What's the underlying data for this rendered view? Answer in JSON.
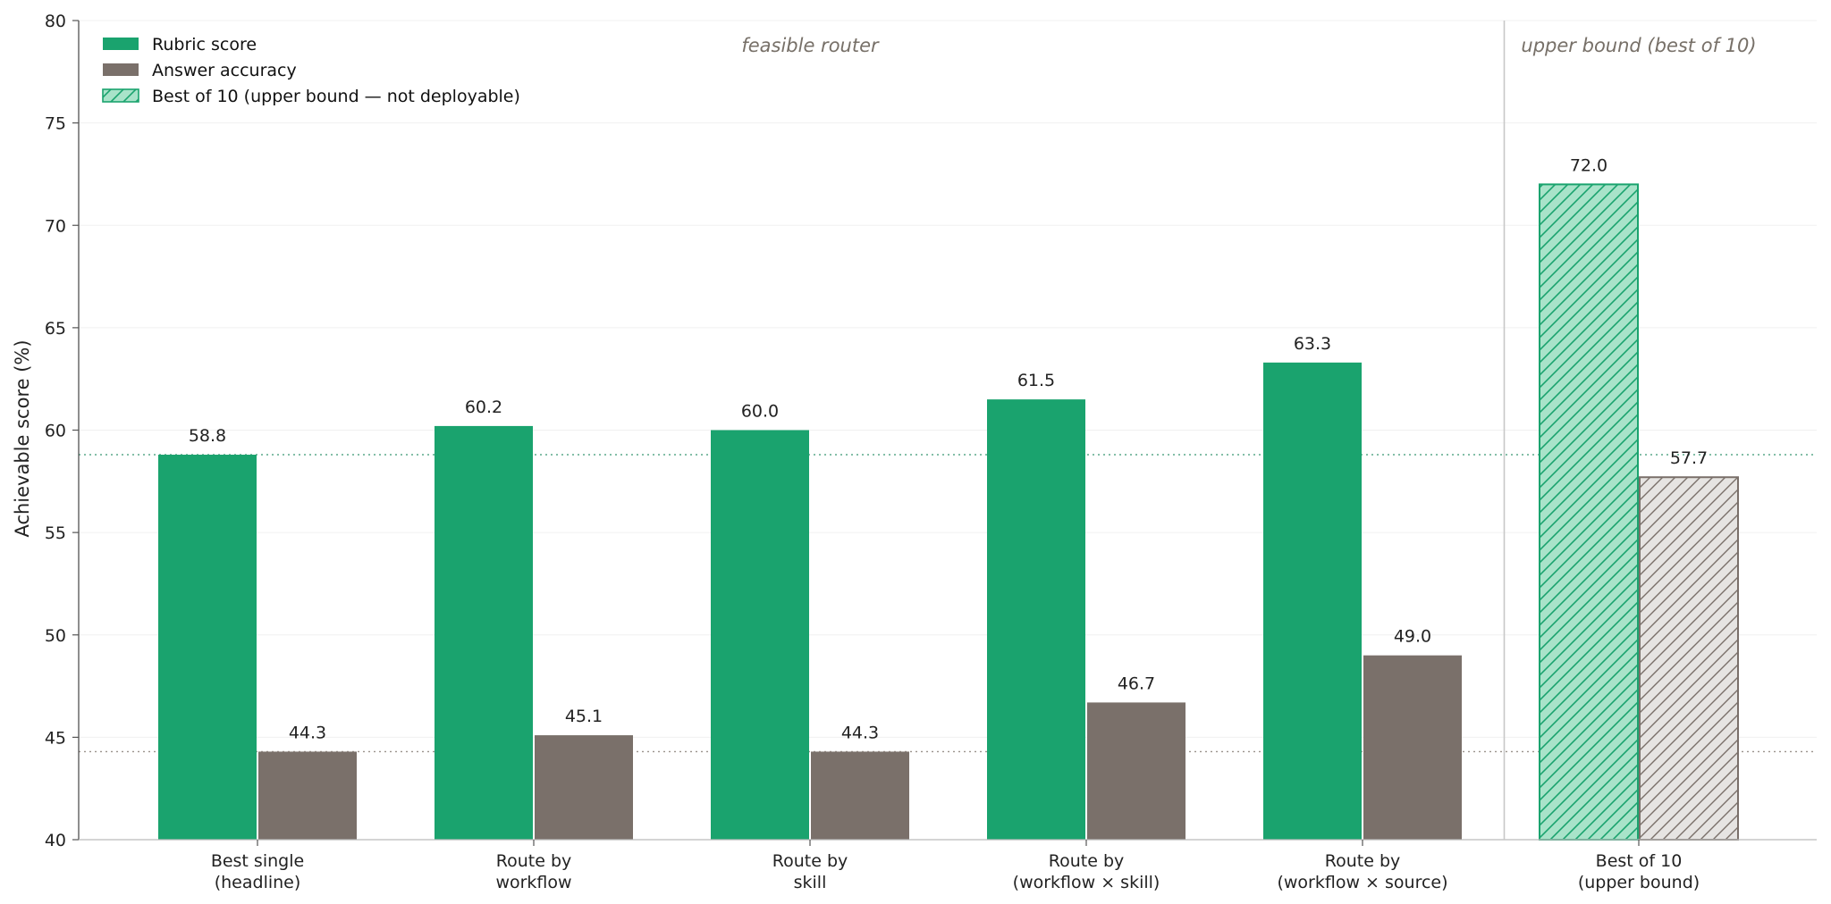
{
  "chart_data": {
    "type": "bar",
    "ylabel": "Achievable score (%)",
    "ylim": [
      40,
      80
    ],
    "yticks": [
      40,
      45,
      50,
      55,
      60,
      65,
      70,
      75,
      80
    ],
    "categories": [
      [
        "Best single",
        "(headline)"
      ],
      [
        "Route by",
        "workflow"
      ],
      [
        "Route by",
        "skill"
      ],
      [
        "Route by",
        "(workflow × skill)"
      ],
      [
        "Route by",
        "(workflow × source)"
      ],
      [
        "Best of 10",
        "(upper bound)"
      ]
    ],
    "series": [
      {
        "name": "Rubric score",
        "color": "#1aa36e",
        "values": [
          58.8,
          60.2,
          60.0,
          61.5,
          63.3,
          72.0
        ]
      },
      {
        "name": "Answer accuracy",
        "color": "#7a706a",
        "values": [
          44.3,
          45.1,
          44.3,
          46.7,
          49.0,
          57.7
        ]
      }
    ],
    "upper_bound_category_index": 5,
    "upper_bound_legend": "Best of 10 (upper bound — not deployable)",
    "region_labels": {
      "feasible": "feasible router",
      "upper": "upper bound (best of 10)"
    },
    "reference_lines": [
      58.8,
      44.3
    ],
    "grid": "horizontal-light",
    "legend_position": "top-left"
  }
}
